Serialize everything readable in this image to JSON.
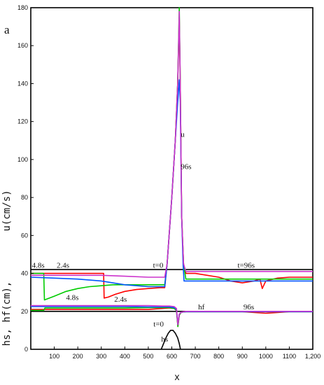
{
  "chart_data": {
    "type": "line",
    "panel_label": "a",
    "xlabel": "x",
    "ylabel_upper": "u(cm/s)",
    "ylabel_lower": "hs, hf(cm),",
    "xlim": [
      0,
      1200
    ],
    "ylim": [
      0,
      180
    ],
    "x_ticks": [
      {
        "value": 100,
        "label": "100"
      },
      {
        "value": 200,
        "label": "200"
      },
      {
        "value": 300,
        "label": "300"
      },
      {
        "value": 400,
        "label": "400"
      },
      {
        "value": 500,
        "label": "500"
      },
      {
        "value": 600,
        "label": "600"
      },
      {
        "value": 700,
        "label": "700"
      },
      {
        "value": 800,
        "label": "800"
      },
      {
        "value": 900,
        "label": "900"
      },
      {
        "value": 1000,
        "label": "1000"
      },
      {
        "value": 1100,
        "label": "1100"
      },
      {
        "value": 1200,
        "label": "1,200"
      }
    ],
    "y_ticks": [
      {
        "value": 0,
        "label": "0"
      },
      {
        "value": 20,
        "label": "20"
      },
      {
        "value": 40,
        "label": "40"
      },
      {
        "value": 60,
        "label": "60"
      },
      {
        "value": 80,
        "label": "80"
      },
      {
        "value": 100,
        "label": "100"
      },
      {
        "value": 120,
        "label": "120"
      },
      {
        "value": 140,
        "label": "140"
      },
      {
        "value": 160,
        "label": "160"
      },
      {
        "value": 180,
        "label": "180"
      }
    ],
    "grid": false,
    "annotations": [
      {
        "text": "u",
        "x": 638,
        "y": 112
      },
      {
        "text": "96s",
        "x": 638,
        "y": 95
      },
      {
        "text": "4.8s",
        "x": 5,
        "y": 43
      },
      {
        "text": "2.4s",
        "x": 110,
        "y": 43
      },
      {
        "text": "t=0",
        "x": 520,
        "y": 43
      },
      {
        "text": "t=96s",
        "x": 880,
        "y": 43
      },
      {
        "text": "4.8s",
        "x": 150,
        "y": 26
      },
      {
        "text": "2.4s",
        "x": 355,
        "y": 25
      },
      {
        "text": "hf",
        "x": 712,
        "y": 21
      },
      {
        "text": "96s",
        "x": 905,
        "y": 21
      },
      {
        "text": "t=0",
        "x": 522,
        "y": 12
      },
      {
        "text": "hs",
        "x": 555,
        "y": 4
      }
    ],
    "series": [
      {
        "color": "#000000",
        "x": [
          0,
          580,
          590,
          600,
          610,
          620,
          630,
          640,
          650,
          660,
          1200
        ],
        "y": [
          42,
          42,
          42,
          42,
          42,
          42,
          42,
          42,
          42,
          42,
          42
        ]
      },
      {
        "color": "#ff0000",
        "x": [
          0,
          310,
          312,
          330,
          360,
          400,
          450,
          500,
          550,
          570,
          580,
          600,
          615,
          625,
          632,
          636,
          642,
          650,
          660,
          700,
          800,
          850,
          900,
          950,
          975,
          985,
          1000,
          1050,
          1100,
          1200
        ],
        "y": [
          40,
          40,
          27,
          27.5,
          29,
          30.5,
          31.5,
          32,
          32.5,
          32.5,
          45,
          80,
          110,
          140,
          175,
          140,
          70,
          45,
          40,
          40,
          38,
          36,
          35,
          36,
          37,
          32,
          36,
          37.5,
          38,
          38
        ]
      },
      {
        "color": "#00cc00",
        "x": [
          0,
          55,
          58,
          100,
          150,
          200,
          250,
          300,
          350,
          400,
          450,
          500,
          550,
          570,
          580,
          600,
          615,
          625,
          632,
          636,
          642,
          650,
          660,
          700,
          800,
          900,
          1000,
          1100,
          1200
        ],
        "y": [
          40,
          40,
          26,
          28,
          30.5,
          32,
          33,
          33.5,
          34,
          34,
          34,
          34,
          34,
          34,
          45,
          80,
          110,
          140,
          180,
          140,
          70,
          45,
          37,
          37,
          37,
          37,
          37,
          37,
          37
        ]
      },
      {
        "color": "#0055ff",
        "x": [
          0,
          100,
          200,
          300,
          400,
          500,
          550,
          570,
          580,
          600,
          615,
          625,
          632,
          636,
          642,
          648,
          652,
          700,
          800,
          900,
          1000,
          1100,
          1200
        ],
        "y": [
          38,
          37.5,
          37,
          36,
          34,
          33,
          33,
          33,
          45,
          80,
          110,
          130,
          142,
          130,
          70,
          45,
          36,
          36,
          36,
          36,
          36,
          36,
          36
        ]
      },
      {
        "color": "#cc33cc",
        "x": [
          0,
          100,
          200,
          300,
          400,
          500,
          550,
          570,
          580,
          600,
          615,
          625,
          632,
          636,
          642,
          650,
          660,
          700,
          800,
          900,
          1000,
          1100,
          1200
        ],
        "y": [
          39,
          39,
          39,
          39,
          38.5,
          38,
          38,
          38,
          45,
          80,
          110,
          140,
          178,
          140,
          70,
          45,
          41,
          41,
          41,
          41,
          41,
          41,
          41
        ]
      },
      {
        "color": "#000000",
        "x": [
          0,
          300,
          320,
          400,
          500,
          560,
          600,
          620,
          630,
          640,
          660,
          700,
          800,
          1000,
          1200
        ],
        "y": [
          20,
          20,
          20,
          20,
          20,
          20,
          20,
          20,
          20,
          20,
          20,
          20,
          20,
          20,
          20
        ]
      },
      {
        "color": "#ff0000",
        "x": [
          0,
          300,
          400,
          500,
          560,
          590,
          610,
          620,
          626,
          632,
          640,
          660,
          700,
          800,
          900,
          1000,
          1100,
          1200
        ],
        "y": [
          21,
          21,
          21,
          21,
          21.5,
          21.8,
          21.5,
          20.5,
          12,
          18,
          19.5,
          19.8,
          19.8,
          19.8,
          19.8,
          19,
          19.8,
          19.8
        ]
      },
      {
        "color": "#00cc00",
        "x": [
          0,
          55,
          60,
          300,
          400,
          500,
          560,
          590,
          610,
          620,
          626,
          632,
          640,
          660,
          700,
          800,
          900,
          1000,
          1100,
          1200
        ],
        "y": [
          20.5,
          20.5,
          21.8,
          21.8,
          21.8,
          22,
          22,
          22,
          21.5,
          20.5,
          12,
          18,
          19.5,
          19.8,
          19.8,
          19.8,
          19.8,
          19.8,
          19.8,
          19.8
        ]
      },
      {
        "color": "#0055ff",
        "x": [
          0,
          100,
          200,
          300,
          400,
          500,
          560,
          590,
          610,
          620,
          626,
          632,
          640,
          660,
          700,
          800,
          900,
          1000,
          1100,
          1200
        ],
        "y": [
          22.5,
          22.5,
          22.5,
          22.5,
          22.5,
          22.3,
          22.3,
          22.3,
          22,
          21,
          13,
          18.5,
          19.6,
          19.8,
          19.8,
          19.8,
          19.8,
          19.8,
          19.8,
          19.8
        ]
      },
      {
        "color": "#cc33cc",
        "x": [
          0,
          100,
          200,
          300,
          400,
          500,
          560,
          590,
          610,
          620,
          626,
          632,
          640,
          660,
          700,
          800,
          900,
          1000,
          1100,
          1200
        ],
        "y": [
          23,
          23,
          23,
          23,
          23,
          23,
          22.8,
          22.8,
          22.5,
          21.5,
          13,
          18.5,
          19.6,
          20,
          20,
          20,
          20,
          20,
          20,
          20
        ]
      },
      {
        "color": "#000000",
        "x": [
          555,
          565,
          575,
          585,
          595,
          605,
          615,
          625,
          632,
          637
        ],
        "y": [
          0,
          3,
          6,
          8.5,
          10,
          10,
          8.5,
          6,
          3,
          0
        ]
      }
    ]
  }
}
